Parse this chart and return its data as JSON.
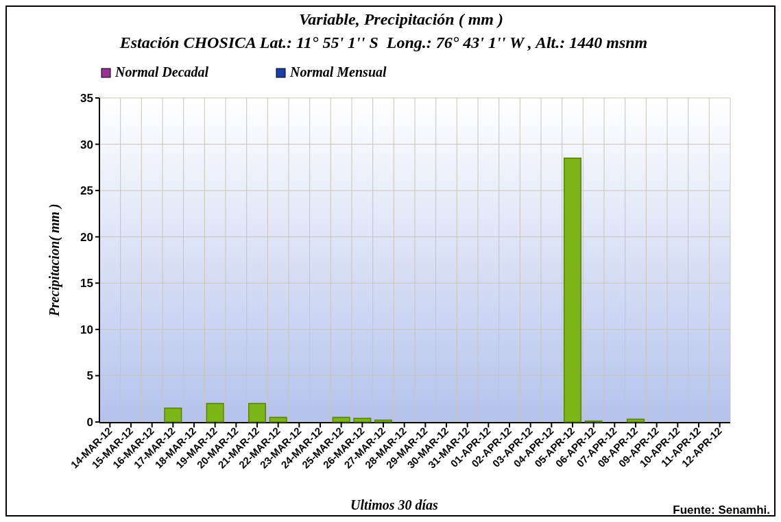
{
  "chart_data": {
    "type": "bar",
    "title": "Variable, Precipitación ( mm )",
    "subtitle": "Estación CHOSICA Lat.: 11° 55' 1'' S  Long.: 76° 43' 1'' W , Alt.: 1440 msnm",
    "xlabel": "Ultimos 30 días",
    "ylabel": "Precipitacion( mm )",
    "categories": [
      "14-MAR-12",
      "15-MAR-12",
      "16-MAR-12",
      "17-MAR-12",
      "18-MAR-12",
      "19-MAR-12",
      "20-MAR-12",
      "21-MAR-12",
      "22-MAR-12",
      "23-MAR-12",
      "24-MAR-12",
      "25-MAR-12",
      "26-MAR-12",
      "27-MAR-12",
      "28-MAR-12",
      "29-MAR-12",
      "30-MAR-12",
      "31-MAR-12",
      "01-APR-12",
      "02-APR-12",
      "03-APR-12",
      "04-APR-12",
      "05-APR-12",
      "06-APR-12",
      "07-APR-12",
      "08-APR-12",
      "09-APR-12",
      "10-APR-12",
      "11-APR-12",
      "12-APR-12"
    ],
    "series": [
      {
        "color": "#7cb518",
        "values": [
          0,
          0,
          0,
          1.5,
          0,
          2,
          0,
          2,
          0.5,
          0,
          0,
          0.5,
          0.4,
          0.2,
          0,
          0,
          0,
          0,
          0,
          0,
          0,
          0,
          28.5,
          0.1,
          0,
          0.3,
          0,
          0,
          0,
          0
        ]
      },
      {
        "name": "Normal Decadal",
        "color": "#993399",
        "values": [
          null,
          null,
          null,
          null,
          null,
          null,
          null,
          null,
          null,
          null,
          null,
          null,
          null,
          null,
          null,
          null,
          null,
          null,
          null,
          null,
          null,
          null,
          null,
          null,
          null,
          null,
          null,
          null,
          null,
          null
        ]
      },
      {
        "name": "Normal Mensual",
        "color": "#1f3fa8",
        "values": [
          null,
          null,
          null,
          null,
          null,
          null,
          null,
          null,
          null,
          null,
          null,
          null,
          null,
          null,
          null,
          null,
          null,
          null,
          null,
          null,
          null,
          null,
          null,
          null,
          null,
          null,
          null,
          null,
          null,
          null
        ]
      }
    ],
    "ylim": [
      0,
      35
    ],
    "yticks": [
      0,
      5,
      10,
      15,
      20,
      25,
      30,
      35
    ],
    "grid": true,
    "legend": "top left",
    "annotations": [
      "Fuente: Senamhi."
    ]
  }
}
